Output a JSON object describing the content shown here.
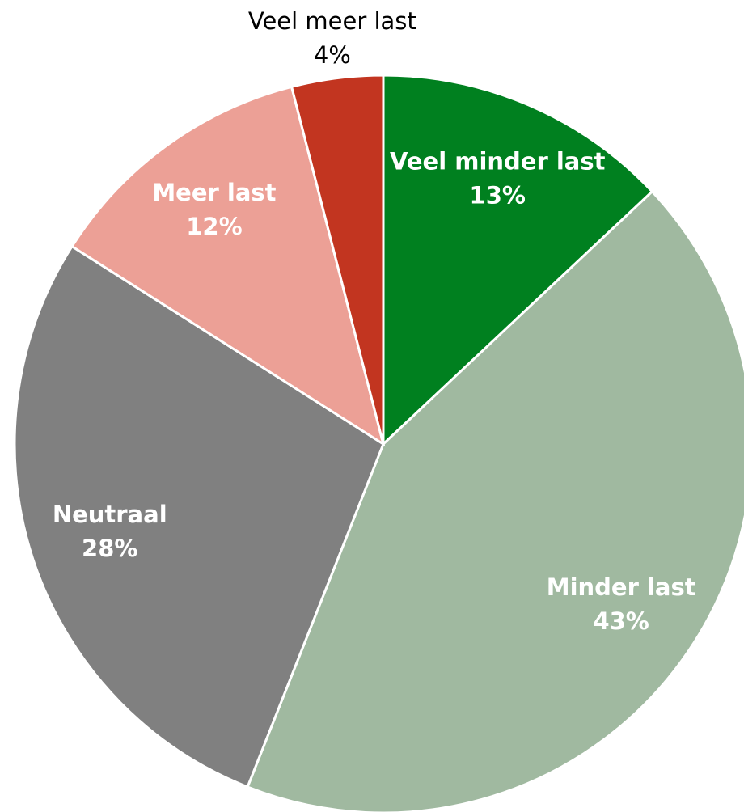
{
  "chart_data": {
    "type": "pie",
    "categories": [
      "Veel minder last",
      "Minder last",
      "Neutraal",
      "Meer last",
      "Veel meer last"
    ],
    "values": [
      13,
      43,
      28,
      12,
      4
    ],
    "value_labels": [
      "13%",
      "43%",
      "28%",
      "12%",
      "4%"
    ],
    "colors": [
      "#00801f",
      "#a0b9a0",
      "#808080",
      "#eca096",
      "#c23520"
    ]
  }
}
